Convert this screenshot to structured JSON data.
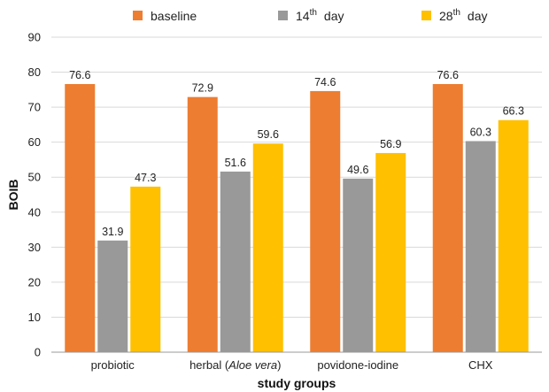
{
  "chart_data": {
    "type": "bar",
    "categories": [
      "probiotic",
      "herbal (Aloe vera)",
      "povidone-iodine",
      "CHX"
    ],
    "category_parts": [
      [
        {
          "text": "probiotic",
          "italic": false
        }
      ],
      [
        {
          "text": "herbal (",
          "italic": false
        },
        {
          "text": "Aloe vera",
          "italic": true
        },
        {
          "text": ")",
          "italic": false
        }
      ],
      [
        {
          "text": "povidone-iodine",
          "italic": false
        }
      ],
      [
        {
          "text": "CHX",
          "italic": false
        }
      ]
    ],
    "series": [
      {
        "name": "baseline",
        "legend_main": "baseline",
        "legend_sup": "",
        "color": "#ED7D31",
        "values": [
          76.6,
          72.9,
          74.6,
          76.6
        ]
      },
      {
        "name": "14th day",
        "legend_main": "14",
        "legend_sup": "th",
        "legend_tail": "day",
        "color": "#999999",
        "values": [
          31.9,
          51.6,
          49.6,
          60.3
        ]
      },
      {
        "name": "28th day",
        "legend_main": "28",
        "legend_sup": "th",
        "legend_tail": "day",
        "color": "#FFC000",
        "values": [
          47.3,
          59.6,
          56.9,
          66.3
        ]
      }
    ],
    "xlabel": "study groups",
    "ylabel": "BOIB",
    "ylim": [
      0,
      90
    ],
    "yticks": [
      0,
      10,
      20,
      30,
      40,
      50,
      60,
      70,
      80,
      90
    ],
    "grid": true,
    "legend_position": "top"
  }
}
